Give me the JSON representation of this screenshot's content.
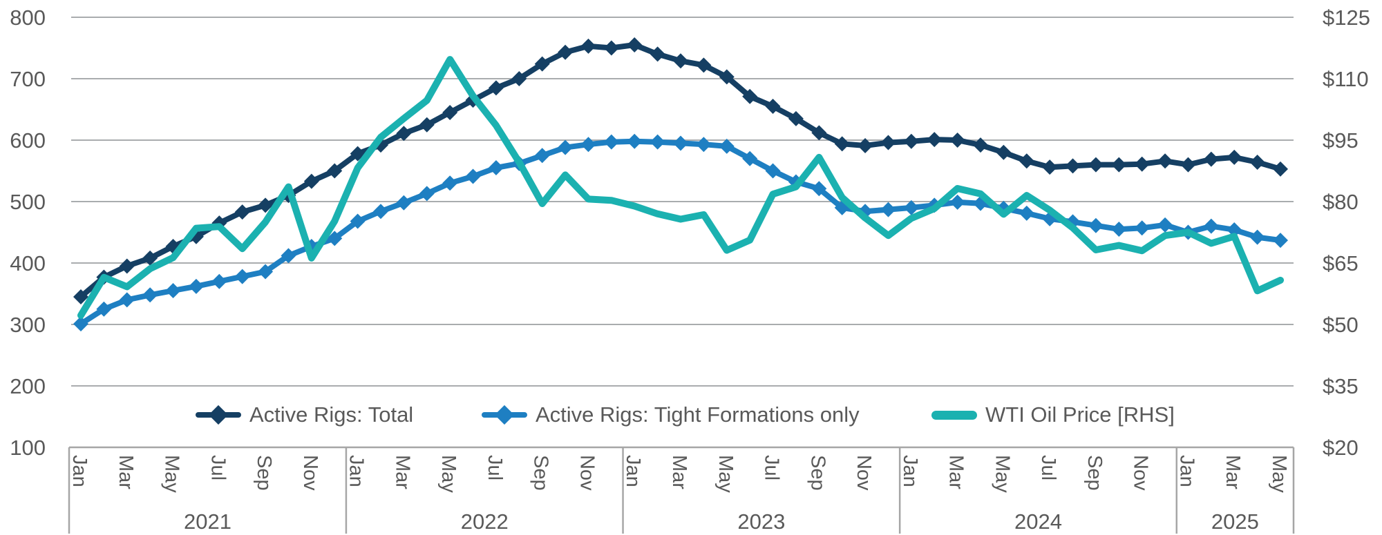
{
  "chart_data": {
    "type": "line",
    "title": "",
    "grid": true,
    "legend_position": "bottom",
    "categories": [
      "Jan 2021",
      "Feb 2021",
      "Mar 2021",
      "Apr 2021",
      "May 2021",
      "Jun 2021",
      "Jul 2021",
      "Aug 2021",
      "Sep 2021",
      "Oct 2021",
      "Nov 2021",
      "Dec 2021",
      "Jan 2022",
      "Feb 2022",
      "Mar 2022",
      "Apr 2022",
      "May 2022",
      "Jun 2022",
      "Jul 2022",
      "Aug 2022",
      "Sep 2022",
      "Oct 2022",
      "Nov 2022",
      "Dec 2022",
      "Jan 2023",
      "Feb 2023",
      "Mar 2023",
      "Apr 2023",
      "May 2023",
      "Jun 2023",
      "Jul 2023",
      "Aug 2023",
      "Sep 2023",
      "Oct 2023",
      "Nov 2023",
      "Dec 2023",
      "Jan 2024",
      "Feb 2024",
      "Mar 2024",
      "Apr 2024",
      "May 2024",
      "Jun 2024",
      "Jul 2024",
      "Aug 2024",
      "Sep 2024",
      "Oct 2024",
      "Nov 2024",
      "Dec 2024",
      "Jan 2025",
      "Feb 2025",
      "Mar 2025",
      "Apr 2025",
      "May 2025"
    ],
    "x_axis": {
      "month_tick_labels": [
        "Jan",
        "Mar",
        "May",
        "Jul",
        "Sep",
        "Nov"
      ],
      "years": [
        "2021",
        "2022",
        "2023",
        "2024",
        "2025"
      ]
    },
    "left_axis": {
      "ticks": [
        800,
        700,
        600,
        500,
        400,
        300,
        200,
        100
      ],
      "range": [
        100,
        800
      ]
    },
    "right_axis": {
      "ticks": [
        "$125",
        "$110",
        "$95",
        "$80",
        "$65",
        "$50",
        "$35",
        "$20"
      ],
      "tick_values": [
        125,
        110,
        95,
        80,
        65,
        50,
        35,
        20
      ],
      "range": [
        20,
        125
      ]
    },
    "series": [
      {
        "name": "Active Rigs: Total",
        "axis": "left",
        "color": "#153f63",
        "marker": "diamond",
        "line_width": 8,
        "values": [
          345,
          377,
          395,
          408,
          427,
          443,
          465,
          483,
          494,
          510,
          533,
          550,
          578,
          592,
          611,
          625,
          645,
          665,
          685,
          700,
          724,
          743,
          753,
          750,
          755,
          740,
          729,
          722,
          703,
          671,
          655,
          635,
          612,
          594,
          591,
          596,
          598,
          601,
          600,
          592,
          580,
          566,
          556,
          558,
          560,
          560,
          561,
          566,
          560,
          569,
          572,
          564,
          553
        ]
      },
      {
        "name": "Active Rigs: Tight Formations only",
        "axis": "left",
        "color": "#1e7fc2",
        "marker": "diamond",
        "line_width": 8,
        "values": [
          301,
          325,
          340,
          348,
          355,
          362,
          370,
          378,
          386,
          412,
          427,
          440,
          468,
          484,
          498,
          513,
          530,
          541,
          555,
          562,
          575,
          588,
          593,
          597,
          598,
          597,
          595,
          593,
          590,
          570,
          550,
          532,
          521,
          490,
          484,
          487,
          490,
          494,
          499,
          497,
          489,
          481,
          472,
          467,
          461,
          455,
          457,
          462,
          450,
          460,
          454,
          442,
          437
        ]
      },
      {
        "name": "WTI Oil Price [RHS]",
        "axis": "right",
        "color": "#1bb1b0",
        "marker": "none",
        "line_width": 10,
        "values": [
          52.2,
          61.5,
          59.2,
          63.6,
          66.3,
          73.5,
          73.9,
          68.5,
          75.0,
          83.6,
          66.2,
          75.2,
          88.2,
          95.7,
          100.3,
          104.7,
          114.7,
          105.8,
          98.6,
          89.6,
          79.5,
          86.5,
          80.6,
          80.3,
          78.9,
          77.0,
          75.7,
          76.8,
          68.1,
          70.6,
          81.8,
          83.6,
          90.8,
          81.0,
          76.0,
          71.7,
          75.9,
          78.3,
          83.2,
          81.9,
          76.9,
          81.5,
          77.9,
          73.6,
          68.2,
          69.3,
          68.0,
          71.7,
          72.5,
          69.8,
          71.5,
          58.2,
          60.8
        ]
      }
    ]
  },
  "colors": {
    "gridline": "#a9acae",
    "frame": "#a6a6a6",
    "axis_text": "#595959"
  }
}
